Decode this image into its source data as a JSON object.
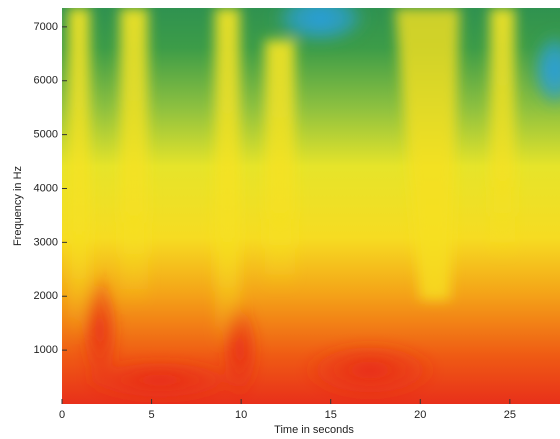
{
  "chart_data": {
    "type": "spectrogram",
    "xlabel": "Time in seconds",
    "ylabel": "Frequency in Hz",
    "xlim": [
      0,
      27.8
    ],
    "xticks": [
      0,
      5,
      10,
      15,
      20,
      25
    ],
    "ylim": [
      0,
      7350
    ],
    "yticks": [
      1000,
      2000,
      3000,
      4000,
      5000,
      6000,
      7000
    ]
  }
}
